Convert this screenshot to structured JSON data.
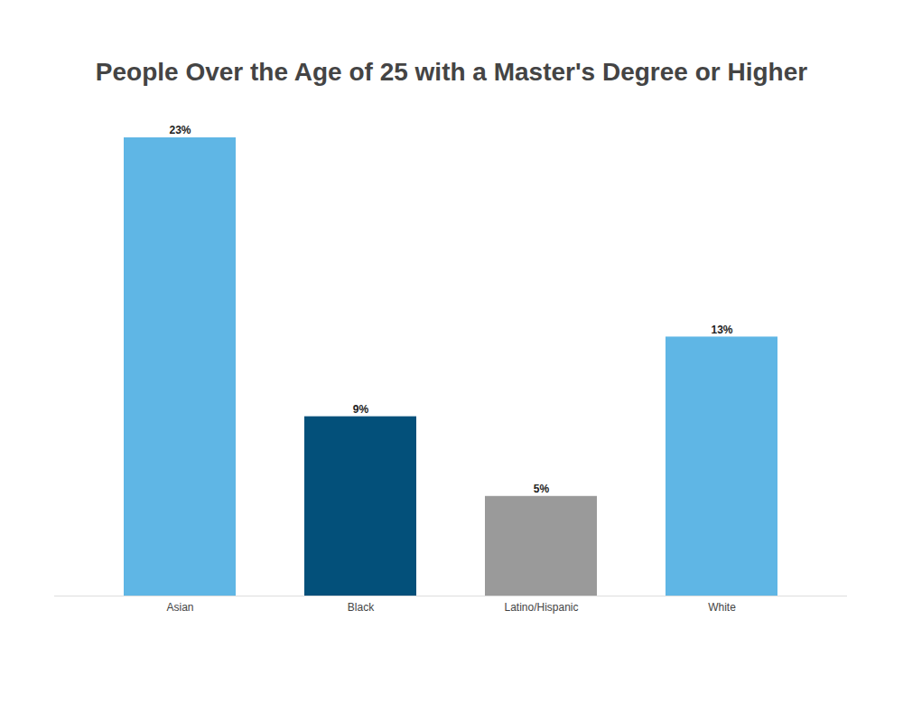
{
  "chart_data": {
    "type": "bar",
    "title": "People Over the Age of 25 with a Master's Degree or Higher",
    "categories": [
      "Asian",
      "Black",
      "Latino/Hispanic",
      "White"
    ],
    "values": [
      23,
      9,
      5,
      13
    ],
    "value_labels": [
      "23%",
      "9%",
      "5%",
      "13%"
    ],
    "colors": [
      "#5fb6e5",
      "#03507a",
      "#9a9a9a",
      "#5fb6e5"
    ],
    "ylim": [
      0,
      23
    ],
    "grid": false,
    "data_labels": true,
    "tick_labels": "x"
  }
}
